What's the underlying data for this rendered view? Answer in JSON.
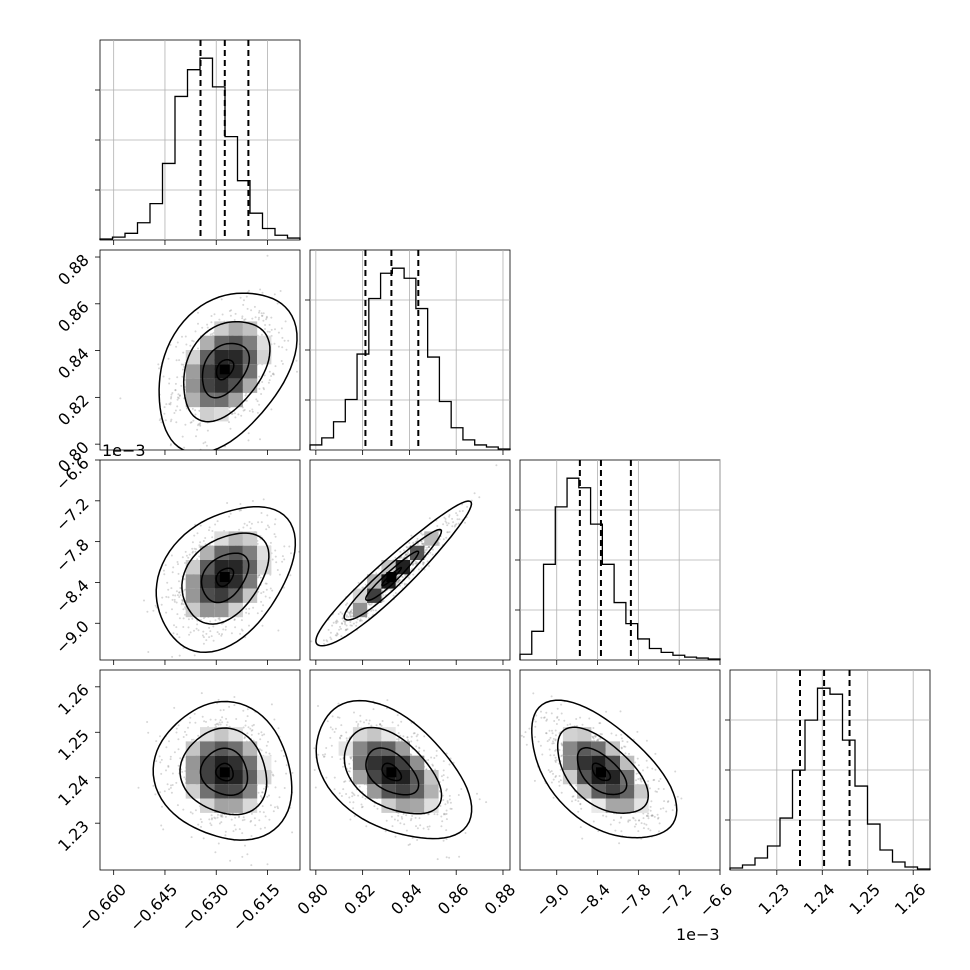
{
  "chart_data": {
    "type": "corner",
    "grid": true,
    "parameters": [
      {
        "ticks": [
          "−0.660",
          "−0.645",
          "−0.630",
          "−0.615"
        ],
        "tick_values": [
          -0.66,
          -0.645,
          -0.63,
          -0.615
        ],
        "range": [
          -0.664,
          -0.6055
        ],
        "quantiles": [
          -0.6346,
          -0.6275,
          -0.6206
        ]
      },
      {
        "ticks": [
          "0.80",
          "0.82",
          "0.84",
          "0.86",
          "0.88"
        ],
        "tick_values": [
          0.8,
          0.82,
          0.84,
          0.86,
          0.88
        ],
        "range": [
          0.7975,
          0.883
        ],
        "quantiles": [
          0.8212,
          0.8323,
          0.8438
        ]
      },
      {
        "ticks": [
          "−9.0",
          "−8.4",
          "−7.8",
          "−7.2",
          "−6.6"
        ],
        "tick_values": [
          -9.0,
          -8.4,
          -7.8,
          -7.2,
          -6.6
        ],
        "range": [
          -9.54,
          -6.6
        ],
        "quantiles": [
          -8.66,
          -8.35,
          -7.91
        ],
        "offset_text": "1e−3"
      },
      {
        "ticks": [
          "1.23",
          "1.24",
          "1.25",
          "1.26"
        ],
        "tick_values": [
          1.23,
          1.24,
          1.25,
          1.26
        ],
        "range": [
          1.2197,
          1.2637
        ],
        "quantiles": [
          1.2351,
          1.2404,
          1.246
        ]
      }
    ],
    "histograms": [
      {
        "counts": [
          1,
          3,
          7,
          18,
          38,
          80,
          150,
          178,
          190,
          160,
          108,
          62,
          28,
          12,
          5,
          2
        ]
      },
      {
        "counts": [
          5,
          12,
          28,
          50,
          95,
          150,
          175,
          180,
          170,
          140,
          92,
          48,
          22,
          10,
          5,
          3,
          1
        ]
      },
      {
        "counts": [
          6,
          30,
          100,
          160,
          190,
          180,
          142,
          100,
          60,
          38,
          22,
          12,
          8,
          5,
          3,
          2,
          1
        ]
      },
      {
        "counts": [
          2,
          5,
          12,
          24,
          52,
          100,
          150,
          182,
          176,
          130,
          84,
          46,
          20,
          8,
          3,
          1
        ]
      }
    ],
    "pairs": [
      {
        "row": 1,
        "col": 0,
        "mean": [
          -0.6275,
          0.832
        ],
        "sd": [
          0.0072,
          0.0122
        ],
        "rho": 0.35
      },
      {
        "row": 2,
        "col": 0,
        "mean": [
          -0.6275,
          -8.32
        ],
        "sd": [
          0.0072,
          0.38
        ],
        "rho": 0.35
      },
      {
        "row": 2,
        "col": 1,
        "mean": [
          0.8323,
          -8.32
        ],
        "sd": [
          0.0118,
          0.38
        ],
        "rho": 0.95
      },
      {
        "row": 3,
        "col": 0,
        "mean": [
          -0.6275,
          1.2412
        ],
        "sd": [
          0.0072,
          0.0054
        ],
        "rho": -0.1
      },
      {
        "row": 3,
        "col": 1,
        "mean": [
          0.8323,
          1.2412
        ],
        "sd": [
          0.0118,
          0.0054
        ],
        "rho": -0.45
      },
      {
        "row": 3,
        "col": 2,
        "mean": [
          -8.35,
          1.2412
        ],
        "sd": [
          0.38,
          0.0054
        ],
        "rho": -0.55
      }
    ]
  }
}
